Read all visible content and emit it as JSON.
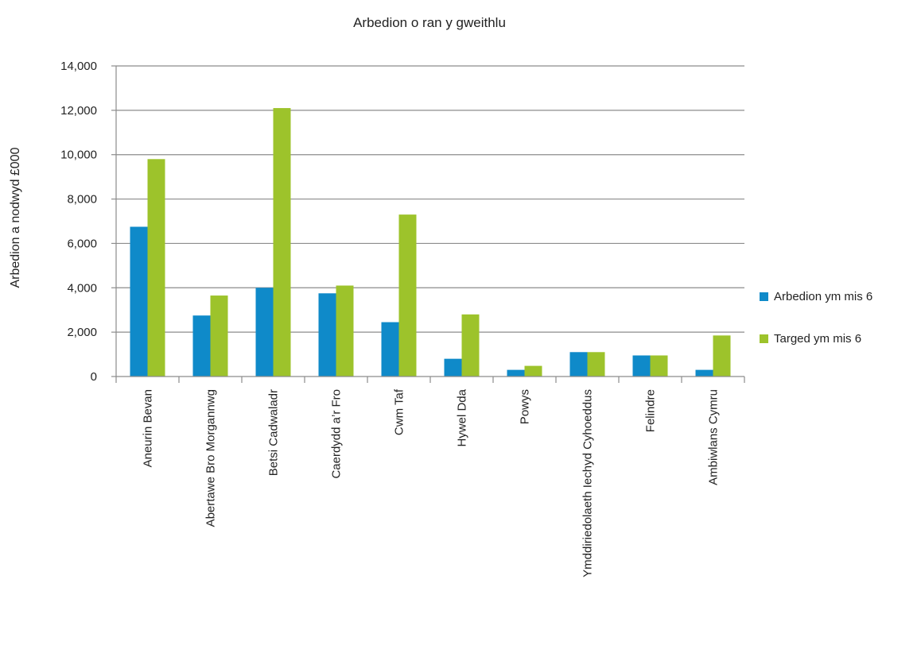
{
  "chart_data": {
    "type": "bar",
    "title": "Arbedion o ran y gweithlu",
    "xlabel": "",
    "ylabel": "Arbedion a nodwyd £000",
    "ylim": [
      0,
      14000
    ],
    "yticks": [
      0,
      2000,
      4000,
      6000,
      8000,
      10000,
      12000,
      14000
    ],
    "ytick_labels": [
      "0",
      "2,000",
      "4,000",
      "6,000",
      "8,000",
      "10,000",
      "12,000",
      "14,000"
    ],
    "grid": true,
    "legend_position": "right",
    "categories": [
      "Aneurin Bevan",
      "Abertawe Bro Morgannwg",
      "Betsi Cadwaladr",
      "Caerdydd a’r Fro",
      "Cwm Taf",
      "Hywel Dda",
      "Powys",
      "Ymddiriedolaeth Iechyd Cyhoeddus",
      "Felindre",
      "Ambiwlans Cymru"
    ],
    "series": [
      {
        "name": "Arbedion ym mis 6",
        "color": "#0f8ac9",
        "values": [
          6750,
          2750,
          4000,
          3750,
          2450,
          800,
          300,
          1100,
          950,
          300
        ]
      },
      {
        "name": "Targed ym mis 6",
        "color": "#9dc32b",
        "values": [
          9800,
          3650,
          12100,
          4100,
          7300,
          2800,
          480,
          1100,
          950,
          1850
        ]
      }
    ]
  }
}
